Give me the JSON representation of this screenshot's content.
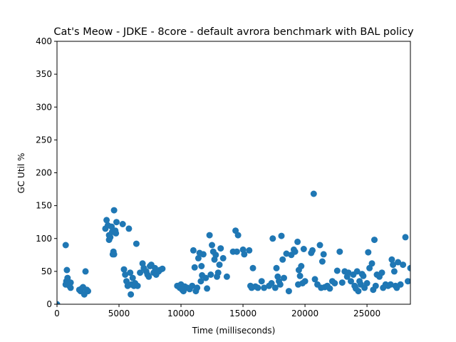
{
  "chart_data": {
    "type": "scatter",
    "title": "Cat's Meow - JDKE - 8core -  default avrora benchmark with BAL policy",
    "xlabel": "Time (milliseconds)",
    "ylabel": "GC Util %",
    "xlim": [
      0,
      28500
    ],
    "ylim": [
      0,
      400
    ],
    "xticks": [
      0,
      5000,
      10000,
      15000,
      20000,
      25000
    ],
    "yticks": [
      0,
      50,
      100,
      150,
      200,
      250,
      300,
      350,
      400
    ],
    "grid": false,
    "color": "#1f77b4",
    "series": [
      {
        "points": [
          [
            0,
            0
          ],
          [
            700,
            90
          ],
          [
            700,
            30
          ],
          [
            750,
            35
          ],
          [
            800,
            52
          ],
          [
            850,
            40
          ],
          [
            900,
            32
          ],
          [
            1000,
            28
          ],
          [
            1100,
            25
          ],
          [
            1100,
            33
          ],
          [
            1800,
            22
          ],
          [
            1900,
            20
          ],
          [
            2000,
            24
          ],
          [
            2100,
            26
          ],
          [
            2200,
            15
          ],
          [
            2300,
            50
          ],
          [
            2400,
            22
          ],
          [
            2500,
            20
          ],
          [
            3900,
            115
          ],
          [
            4000,
            128
          ],
          [
            4100,
            120
          ],
          [
            4200,
            105
          ],
          [
            4200,
            98
          ],
          [
            4300,
            102
          ],
          [
            4400,
            118
          ],
          [
            4450,
            110
          ],
          [
            4500,
            76
          ],
          [
            4550,
            80
          ],
          [
            4600,
            143
          ],
          [
            4600,
            76
          ],
          [
            4700,
            112
          ],
          [
            4750,
            108
          ],
          [
            4800,
            125
          ],
          [
            5300,
            122
          ],
          [
            5400,
            53
          ],
          [
            5500,
            45
          ],
          [
            5600,
            35
          ],
          [
            5700,
            28
          ],
          [
            5800,
            115
          ],
          [
            5900,
            48
          ],
          [
            5950,
            15
          ],
          [
            6000,
            30
          ],
          [
            6100,
            40
          ],
          [
            6200,
            28
          ],
          [
            6300,
            32
          ],
          [
            6400,
            92
          ],
          [
            6500,
            28
          ],
          [
            6700,
            48
          ],
          [
            6900,
            62
          ],
          [
            7000,
            55
          ],
          [
            7200,
            50
          ],
          [
            7300,
            45
          ],
          [
            7400,
            42
          ],
          [
            7500,
            58
          ],
          [
            7600,
            60
          ],
          [
            7800,
            48
          ],
          [
            7900,
            55
          ],
          [
            8000,
            45
          ],
          [
            8200,
            50
          ],
          [
            8300,
            52
          ],
          [
            8500,
            54
          ],
          [
            9700,
            28
          ],
          [
            9900,
            25
          ],
          [
            10000,
            30
          ],
          [
            10100,
            22
          ],
          [
            10200,
            20
          ],
          [
            10300,
            27
          ],
          [
            10500,
            25
          ],
          [
            10700,
            23
          ],
          [
            10900,
            28
          ],
          [
            11000,
            82
          ],
          [
            11100,
            56
          ],
          [
            11200,
            20
          ],
          [
            11300,
            25
          ],
          [
            11400,
            70
          ],
          [
            11500,
            78
          ],
          [
            11600,
            35
          ],
          [
            11650,
            58
          ],
          [
            11700,
            44
          ],
          [
            11800,
            76
          ],
          [
            12000,
            40
          ],
          [
            12100,
            24
          ],
          [
            12300,
            105
          ],
          [
            12400,
            45
          ],
          [
            12500,
            90
          ],
          [
            12600,
            80
          ],
          [
            12700,
            68
          ],
          [
            12800,
            75
          ],
          [
            12900,
            42
          ],
          [
            13000,
            48
          ],
          [
            13100,
            60
          ],
          [
            13200,
            85
          ],
          [
            13400,
            70
          ],
          [
            13700,
            42
          ],
          [
            14200,
            80
          ],
          [
            14400,
            112
          ],
          [
            14500,
            80
          ],
          [
            14600,
            105
          ],
          [
            15000,
            83
          ],
          [
            15100,
            76
          ],
          [
            15500,
            82
          ],
          [
            15600,
            28
          ],
          [
            15700,
            25
          ],
          [
            15800,
            55
          ],
          [
            16000,
            27
          ],
          [
            16200,
            25
          ],
          [
            16500,
            35
          ],
          [
            16700,
            25
          ],
          [
            17100,
            28
          ],
          [
            17300,
            32
          ],
          [
            17400,
            100
          ],
          [
            17600,
            25
          ],
          [
            17700,
            55
          ],
          [
            17800,
            42
          ],
          [
            17900,
            35
          ],
          [
            18000,
            30
          ],
          [
            18100,
            104
          ],
          [
            18200,
            68
          ],
          [
            18300,
            40
          ],
          [
            18500,
            77
          ],
          [
            18700,
            20
          ],
          [
            18900,
            75
          ],
          [
            19100,
            83
          ],
          [
            19200,
            80
          ],
          [
            19400,
            95
          ],
          [
            19450,
            30
          ],
          [
            19500,
            52
          ],
          [
            19600,
            43
          ],
          [
            19700,
            58
          ],
          [
            19800,
            32
          ],
          [
            19900,
            84
          ],
          [
            20000,
            35
          ],
          [
            20500,
            78
          ],
          [
            20600,
            82
          ],
          [
            20700,
            168
          ],
          [
            20800,
            38
          ],
          [
            21000,
            30
          ],
          [
            21200,
            90
          ],
          [
            21300,
            25
          ],
          [
            21400,
            65
          ],
          [
            21500,
            76
          ],
          [
            21600,
            26
          ],
          [
            21800,
            28
          ],
          [
            22000,
            24
          ],
          [
            22200,
            35
          ],
          [
            22400,
            32
          ],
          [
            22600,
            51
          ],
          [
            22800,
            80
          ],
          [
            23000,
            33
          ],
          [
            23200,
            50
          ],
          [
            23400,
            42
          ],
          [
            23500,
            48
          ],
          [
            23700,
            35
          ],
          [
            23900,
            45
          ],
          [
            24000,
            28
          ],
          [
            24100,
            24
          ],
          [
            24200,
            50
          ],
          [
            24300,
            20
          ],
          [
            24400,
            35
          ],
          [
            24500,
            30
          ],
          [
            24600,
            46
          ],
          [
            24700,
            43
          ],
          [
            24800,
            25
          ],
          [
            25000,
            32
          ],
          [
            25100,
            79
          ],
          [
            25200,
            55
          ],
          [
            25400,
            62
          ],
          [
            25500,
            22
          ],
          [
            25600,
            98
          ],
          [
            25700,
            28
          ],
          [
            25800,
            45
          ],
          [
            26000,
            42
          ],
          [
            26200,
            48
          ],
          [
            26300,
            25
          ],
          [
            26500,
            30
          ],
          [
            26700,
            28
          ],
          [
            26900,
            30
          ],
          [
            27000,
            68
          ],
          [
            27100,
            60
          ],
          [
            27200,
            50
          ],
          [
            27300,
            28
          ],
          [
            27400,
            25
          ],
          [
            27500,
            64
          ],
          [
            27700,
            30
          ],
          [
            27900,
            60
          ],
          [
            28100,
            102
          ],
          [
            28300,
            35
          ],
          [
            28500,
            55
          ]
        ]
      }
    ]
  }
}
